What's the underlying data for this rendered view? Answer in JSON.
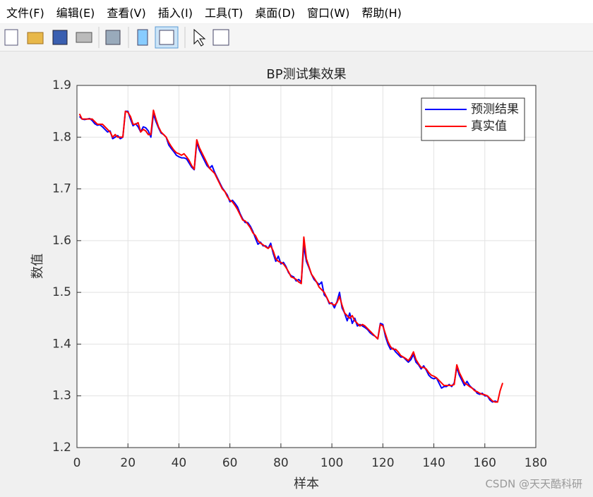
{
  "menu": [
    "文件(F)",
    "编辑(E)",
    "查看(V)",
    "插入(I)",
    "工具(T)",
    "桌面(D)",
    "窗口(W)",
    "帮助(H)"
  ],
  "watermark": "CSDN @天天酷科研",
  "chart_data": {
    "type": "line",
    "title": "BP测试集效果",
    "xlabel": "样本",
    "ylabel": "数值",
    "x": [
      1,
      2,
      3,
      4,
      5,
      6,
      7,
      8,
      9,
      10,
      11,
      12,
      13,
      14,
      15,
      16,
      17,
      18,
      19,
      20,
      21,
      22,
      23,
      24,
      25,
      26,
      27,
      28,
      29,
      30,
      31,
      32,
      33,
      34,
      35,
      36,
      37,
      38,
      39,
      40,
      41,
      42,
      43,
      44,
      45,
      46,
      47,
      48,
      49,
      50,
      51,
      52,
      53,
      54,
      55,
      56,
      57,
      58,
      59,
      60,
      61,
      62,
      63,
      64,
      65,
      66,
      67,
      68,
      69,
      70,
      71,
      72,
      73,
      74,
      75,
      76,
      77,
      78,
      79,
      80,
      81,
      82,
      83,
      84,
      85,
      86,
      87,
      88,
      89,
      90,
      91,
      92,
      93,
      94,
      95,
      96,
      97,
      98,
      99,
      100,
      101,
      102,
      103,
      104,
      105,
      106,
      107,
      108,
      109,
      110,
      111,
      112,
      113,
      114,
      115,
      116,
      117,
      118,
      119,
      120,
      121,
      122,
      123,
      124,
      125,
      126,
      127,
      128,
      129,
      130,
      131,
      132,
      133,
      134,
      135,
      136,
      137,
      138,
      139,
      140,
      141,
      142,
      143,
      144,
      145,
      146,
      147,
      148,
      149,
      150,
      151,
      152,
      153,
      154,
      155,
      156,
      157,
      158,
      159,
      160,
      161,
      162,
      163,
      164,
      165,
      166,
      167
    ],
    "series": [
      {
        "name": "预测结果",
        "color": "#0000ff",
        "values": [
          1.84,
          1.835,
          1.834,
          1.835,
          1.836,
          1.832,
          1.826,
          1.823,
          1.824,
          1.82,
          1.815,
          1.81,
          1.812,
          1.797,
          1.8,
          1.803,
          1.797,
          1.8,
          1.85,
          1.85,
          1.835,
          1.822,
          1.826,
          1.82,
          1.81,
          1.82,
          1.818,
          1.812,
          1.8,
          1.845,
          1.83,
          1.818,
          1.808,
          1.805,
          1.8,
          1.785,
          1.778,
          1.772,
          1.765,
          1.762,
          1.76,
          1.76,
          1.758,
          1.75,
          1.742,
          1.737,
          1.79,
          1.775,
          1.765,
          1.755,
          1.745,
          1.74,
          1.745,
          1.732,
          1.722,
          1.712,
          1.702,
          1.695,
          1.688,
          1.675,
          1.678,
          1.672,
          1.665,
          1.652,
          1.642,
          1.635,
          1.635,
          1.628,
          1.618,
          1.605,
          1.593,
          1.597,
          1.59,
          1.59,
          1.585,
          1.595,
          1.575,
          1.56,
          1.57,
          1.555,
          1.558,
          1.55,
          1.538,
          1.532,
          1.53,
          1.522,
          1.525,
          1.52,
          1.59,
          1.56,
          1.548,
          1.535,
          1.525,
          1.52,
          1.515,
          1.52,
          1.495,
          1.49,
          1.478,
          1.48,
          1.47,
          1.482,
          1.5,
          1.47,
          1.46,
          1.445,
          1.46,
          1.44,
          1.45,
          1.435,
          1.438,
          1.435,
          1.432,
          1.428,
          1.422,
          1.418,
          1.415,
          1.41,
          1.44,
          1.438,
          1.415,
          1.4,
          1.39,
          1.392,
          1.385,
          1.38,
          1.375,
          1.375,
          1.37,
          1.365,
          1.37,
          1.38,
          1.365,
          1.36,
          1.352,
          1.358,
          1.35,
          1.34,
          1.335,
          1.333,
          1.335,
          1.325,
          1.315,
          1.318,
          1.318,
          1.322,
          1.318,
          1.325,
          1.355,
          1.34,
          1.33,
          1.32,
          1.328,
          1.32,
          1.315,
          1.312,
          1.305,
          1.303,
          1.305,
          1.3,
          1.3,
          1.292,
          1.288,
          1.29,
          1.288,
          null,
          null
        ]
      },
      {
        "name": "真实值",
        "color": "#ff0000",
        "values": [
          1.845,
          1.835,
          1.835,
          1.835,
          1.835,
          1.835,
          1.83,
          1.825,
          1.825,
          1.825,
          1.82,
          1.815,
          1.81,
          1.8,
          1.805,
          1.8,
          1.8,
          1.8,
          1.85,
          1.848,
          1.84,
          1.825,
          1.825,
          1.828,
          1.81,
          1.815,
          1.812,
          1.805,
          1.805,
          1.852,
          1.835,
          1.82,
          1.81,
          1.805,
          1.8,
          1.79,
          1.782,
          1.775,
          1.77,
          1.768,
          1.765,
          1.768,
          1.762,
          1.755,
          1.745,
          1.738,
          1.795,
          1.78,
          1.77,
          1.76,
          1.75,
          1.74,
          1.735,
          1.73,
          1.72,
          1.71,
          1.7,
          1.695,
          1.685,
          1.678,
          1.675,
          1.668,
          1.66,
          1.65,
          1.64,
          1.638,
          1.632,
          1.625,
          1.615,
          1.61,
          1.6,
          1.595,
          1.592,
          1.588,
          1.585,
          1.59,
          1.58,
          1.565,
          1.56,
          1.558,
          1.555,
          1.548,
          1.54,
          1.53,
          1.528,
          1.525,
          1.52,
          1.517,
          1.607,
          1.565,
          1.55,
          1.535,
          1.528,
          1.52,
          1.51,
          1.505,
          1.5,
          1.49,
          1.48,
          1.478,
          1.475,
          1.48,
          1.492,
          1.475,
          1.46,
          1.455,
          1.45,
          1.455,
          1.445,
          1.44,
          1.435,
          1.438,
          1.435,
          1.43,
          1.425,
          1.42,
          1.415,
          1.41,
          1.438,
          1.435,
          1.42,
          1.405,
          1.395,
          1.39,
          1.39,
          1.385,
          1.378,
          1.375,
          1.372,
          1.368,
          1.375,
          1.385,
          1.37,
          1.362,
          1.355,
          1.355,
          1.352,
          1.345,
          1.34,
          1.338,
          1.335,
          1.33,
          1.325,
          1.32,
          1.32,
          1.32,
          1.32,
          1.322,
          1.36,
          1.345,
          1.335,
          1.325,
          1.322,
          1.318,
          1.315,
          1.31,
          1.308,
          1.305,
          1.303,
          1.302,
          1.3,
          1.295,
          1.29,
          1.288,
          1.288,
          1.31,
          1.325
        ]
      }
    ],
    "xlim": [
      0,
      180
    ],
    "xticks": [
      0,
      20,
      40,
      60,
      80,
      100,
      120,
      140,
      160,
      180
    ],
    "ylim": [
      1.2,
      1.9
    ],
    "yticks": [
      1.2,
      1.3,
      1.4,
      1.5,
      1.6,
      1.7,
      1.8,
      1.9
    ],
    "grid": true,
    "legend": "northeast"
  }
}
